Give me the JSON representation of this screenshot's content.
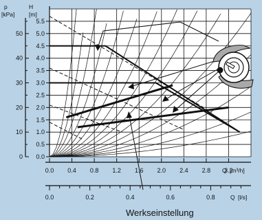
{
  "chart_data": {
    "type": "line",
    "title": "",
    "colors": {
      "background": "#b9d2e6",
      "plot_area": "#ffffff",
      "ink": "#111111",
      "pump_body": "#a9a9a9"
    },
    "grid": true,
    "axes": {
      "H": {
        "symbol": "H",
        "unit": "[m]",
        "range": [
          0,
          6
        ],
        "tick_labels": [
          "0.0",
          "0.5",
          "1.0",
          "1.5",
          "2.0",
          "2.5",
          "3.0",
          "3.5",
          "4.0",
          "4.5",
          "5.0",
          "5.5"
        ]
      },
      "p": {
        "symbol": "p",
        "unit": "[kPa]",
        "range": [
          0,
          60
        ],
        "tick_labels": [
          "0",
          "10",
          "20",
          "30",
          "40",
          "50"
        ]
      },
      "Q_m3h": {
        "symbol": "Q",
        "unit": "[m³/h]",
        "range": [
          0,
          3.6
        ],
        "tick_labels": [
          "0.0",
          "0.4",
          "0.8",
          "1.2",
          "1.6",
          "2.0",
          "2.4",
          "2.8",
          "3.2"
        ]
      },
      "Q_ls": {
        "symbol": "Q",
        "unit": "[l/s]",
        "range": [
          0,
          1.0
        ],
        "tick_labels": [
          "0.0",
          "0.2",
          "0.4",
          "0.6",
          "0.8"
        ]
      }
    },
    "series": [
      {
        "style": "solid",
        "points": [
          [
            0,
            4.5
          ],
          [
            1.0,
            4.5
          ],
          [
            3.4,
            1.0
          ]
        ]
      },
      {
        "style": "solid",
        "points": [
          [
            0,
            3.0
          ],
          [
            1.9,
            3.0
          ],
          [
            3.4,
            1.0
          ]
        ]
      },
      {
        "style": "thick",
        "points": [
          [
            0.3,
            1.6
          ],
          [
            2.2,
            2.9
          ]
        ]
      },
      {
        "style": "thick",
        "points": [
          [
            0.5,
            1.2
          ],
          [
            3.2,
            2.0
          ]
        ]
      },
      {
        "style": "dashed",
        "points": [
          [
            0,
            5.7
          ],
          [
            2.9,
            1.8
          ]
        ]
      },
      {
        "style": "dashed",
        "points": [
          [
            0,
            3.6
          ],
          [
            2.4,
            1.1
          ]
        ]
      },
      {
        "style": "dashed",
        "points": [
          [
            0,
            2.1
          ],
          [
            1.3,
            1.0
          ]
        ]
      },
      {
        "style": "dashed",
        "points": [
          [
            0,
            1.4
          ],
          [
            0.6,
            0.7
          ]
        ]
      }
    ],
    "annotations": [
      {
        "text": "Werkseinstellung"
      }
    ]
  }
}
